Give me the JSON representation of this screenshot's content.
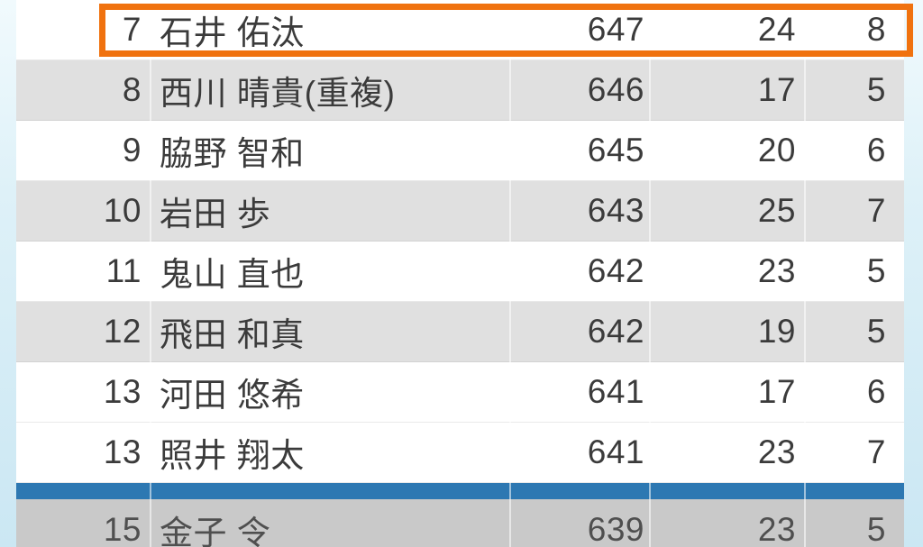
{
  "colors": {
    "accent_orange": "#F0720F",
    "separator_blue": "#2D78B2",
    "row_gray": "#E0E0E0",
    "row_gray_dark": "#C9C9C9",
    "frame_cyan": "#CBE7F3",
    "text": "#3B3B3B"
  },
  "table": {
    "rows": [
      {
        "rank": "7",
        "name": "石井 佑汰",
        "score": "647",
        "stat_a": "24",
        "stat_b": "8",
        "shade": "white",
        "highlighted": true
      },
      {
        "rank": "8",
        "name": "西川 晴貴(重複)",
        "score": "646",
        "stat_a": "17",
        "stat_b": "5",
        "shade": "gray"
      },
      {
        "rank": "9",
        "name": "脇野 智和",
        "score": "645",
        "stat_a": "20",
        "stat_b": "6",
        "shade": "white"
      },
      {
        "rank": "10",
        "name": "岩田 歩",
        "score": "643",
        "stat_a": "25",
        "stat_b": "7",
        "shade": "gray"
      },
      {
        "rank": "11",
        "name": "鬼山 直也",
        "score": "642",
        "stat_a": "23",
        "stat_b": "5",
        "shade": "white"
      },
      {
        "rank": "12",
        "name": "飛田 和真",
        "score": "642",
        "stat_a": "19",
        "stat_b": "5",
        "shade": "gray"
      },
      {
        "rank": "13",
        "name": "河田 悠希",
        "score": "641",
        "stat_a": "17",
        "stat_b": "6",
        "shade": "white"
      },
      {
        "rank": "13",
        "name": "照井 翔太",
        "score": "641",
        "stat_a": "23",
        "stat_b": "7",
        "shade": "white"
      },
      {
        "type": "divider"
      },
      {
        "rank": "15",
        "name": "金子 令",
        "score": "639",
        "stat_a": "23",
        "stat_b": "5",
        "shade": "gray-dark"
      }
    ]
  }
}
